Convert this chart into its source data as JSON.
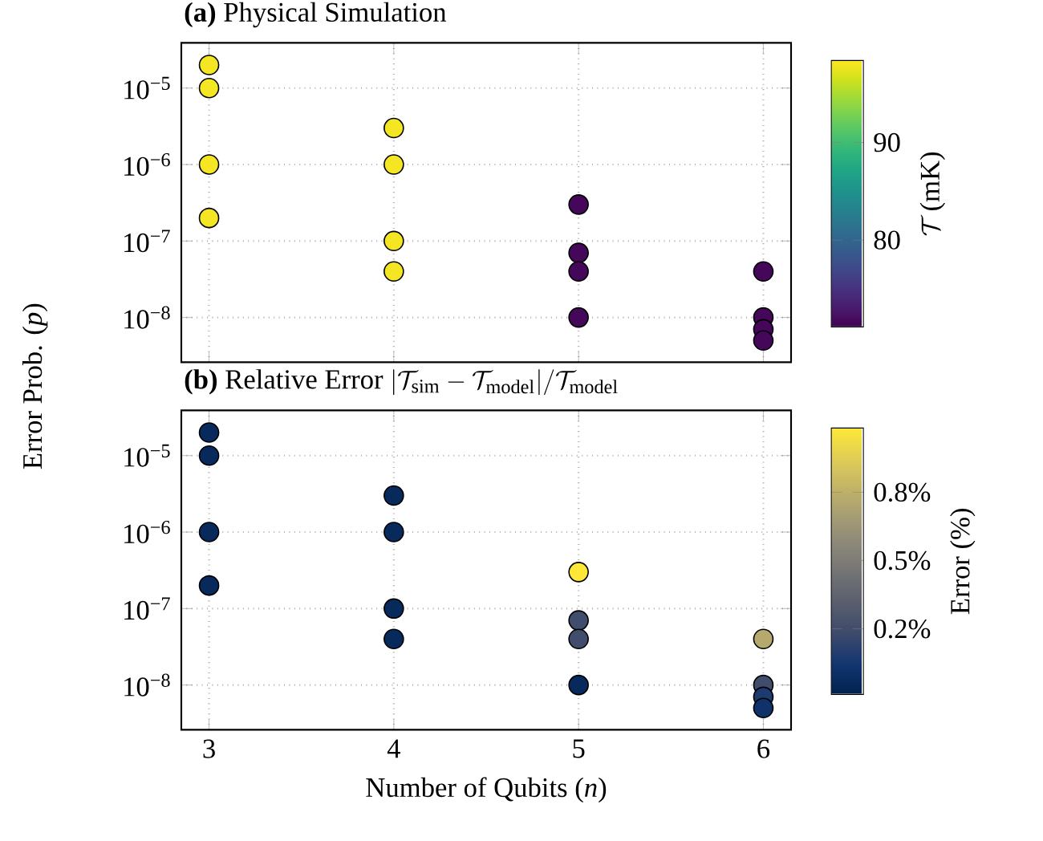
{
  "chart_data": [
    {
      "type": "scatter",
      "title": "**(a)** Physical Simulation",
      "ylabel": "Error Prob. (*p*)",
      "clabel": "\\mathcal{T}\\,\\text{(mK)}",
      "x": [
        3,
        3,
        3,
        3,
        4,
        4,
        4,
        4,
        5,
        5,
        5,
        5,
        6,
        6,
        6,
        6
      ],
      "values": [
        2e-05,
        1e-05,
        1e-06,
        2e-07,
        3e-06,
        1e-06,
        1e-07,
        4e-08,
        3e-07,
        7e-08,
        4e-08,
        1e-08,
        4e-08,
        1e-08,
        7e-09,
        5e-09
      ],
      "cvalues": [
        98,
        98,
        98,
        98,
        98,
        98,
        98,
        98,
        71.5,
        71.5,
        71.5,
        71.5,
        71.5,
        71.5,
        71.5,
        71.5
      ],
      "clim": [
        71.1,
        98.4
      ],
      "cticks": [
        80,
        90
      ],
      "xlim": [
        2.85,
        6.15
      ],
      "xticks": [
        3,
        4,
        5,
        6
      ],
      "log": "y",
      "ylim": [
        2.6e-09,
        3.9e-05
      ],
      "yticks": [
        {
          "value": 1e-08,
          "label": "10$^{−8}$"
        },
        {
          "value": 1e-07,
          "label": "10$^{−7}$"
        },
        {
          "value": 1e-06,
          "label": "10$^{−6}$"
        },
        {
          "value": 1e-05,
          "label": "10$^{−5}$"
        }
      ],
      "grid": true,
      "marker": "circle",
      "tick_labels": "y"
    },
    {
      "type": "scatter",
      "title": "\\textbf{(b)}\\ \\text{Relative Error}\\ |\\mathcal{T}_{\\text{sim}}-\\mathcal{T}_{\\text{model}}|/\\mathcal{T}_{\\text{model}}",
      "xlabel": "Number of Qubits (*n*)",
      "clabel": "\\text{Error (\\%)}",
      "x": [
        3,
        3,
        3,
        3,
        4,
        4,
        4,
        4,
        5,
        5,
        5,
        5,
        6,
        6,
        6,
        6
      ],
      "values": [
        2e-05,
        1e-05,
        1e-06,
        2e-07,
        3e-06,
        1e-06,
        1e-07,
        4e-08,
        3e-07,
        7e-08,
        4e-08,
        1e-08,
        4e-08,
        1e-08,
        7e-09,
        5e-09
      ],
      "cvalues": [
        0.05,
        0.05,
        0.05,
        0.05,
        0.05,
        0.05,
        0.05,
        0.05,
        0.98,
        0.25,
        0.25,
        0.05,
        0.72,
        0.25,
        0.15,
        0.1
      ],
      "clim": [
        0.01,
        0.985
      ],
      "cticks": [
        {
          "value": 0.25,
          "label": "0.2%"
        },
        {
          "value": 0.5,
          "label": "0.5%"
        },
        {
          "value": 0.75,
          "label": "0.8%"
        }
      ],
      "xlim": [
        2.85,
        6.15
      ],
      "xticks": [
        3,
        4,
        5,
        6
      ],
      "log": "y",
      "ylim": [
        2.6e-09,
        3.9e-05
      ],
      "yticks": [
        {
          "value": 1e-08,
          "label": "10$^{−8}$"
        },
        {
          "value": 1e-07,
          "label": "10$^{−7}$"
        },
        {
          "value": 1e-06,
          "label": "10$^{−6}$"
        },
        {
          "value": 1e-05,
          "label": "10$^{−5}$"
        }
      ],
      "grid": true,
      "marker": "circle"
    }
  ]
}
